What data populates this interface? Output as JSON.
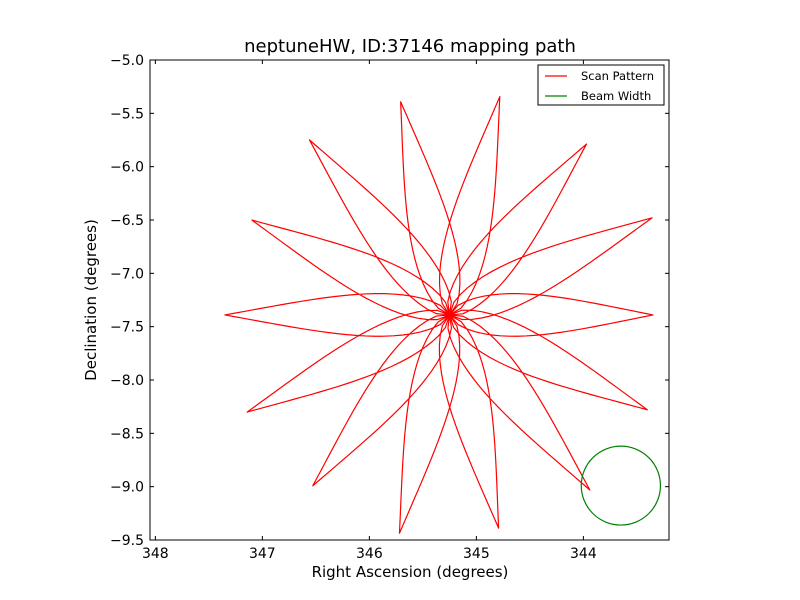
{
  "chart_data": {
    "type": "line",
    "title": "neptuneHW, ID:37146 mapping path",
    "xlabel": "Right Ascension (degrees)",
    "ylabel": "Declination (degrees)",
    "xlim": [
      348.05,
      343.2
    ],
    "ylim": [
      -9.5,
      -5.0
    ],
    "x_ticks": [
      348,
      347,
      346,
      345,
      344
    ],
    "x_tick_labels": [
      "348",
      "347",
      "346",
      "345",
      "344"
    ],
    "y_ticks": [
      -5.0,
      -5.5,
      -6.0,
      -6.5,
      -7.0,
      -7.5,
      -8.0,
      -8.5,
      -9.0,
      -9.5
    ],
    "y_tick_labels": [
      "−5.0",
      "−5.5",
      "−6.0",
      "−6.5",
      "−7.0",
      "−7.5",
      "−8.0",
      "−8.5",
      "−9.0",
      "−9.5"
    ],
    "grid": false,
    "legend_position": "top-right",
    "center": [
      345.25,
      -7.39
    ],
    "series": [
      {
        "name": "Scan Pattern",
        "color": "#ff0000",
        "lobe_count": 14,
        "lobe_angles_deg": [
          0,
          25.7,
          51.4,
          77.1,
          102.9,
          128.6,
          154.3,
          180,
          205.7,
          231.4,
          257.1,
          282.9,
          308.6,
          334.3
        ],
        "lobe_reach_deg": [
          2.1,
          2.05,
          2.1,
          2.05,
          2.1,
          2.05,
          2.1,
          1.9,
          2.05,
          2.1,
          2.05,
          2.1,
          2.05,
          2.1
        ],
        "lobe_half_width_deg": 0.2
      },
      {
        "name": "Beam Width",
        "color": "#008000",
        "circle_center": [
          343.65,
          -8.99
        ],
        "circle_radius_deg": 0.37
      }
    ]
  }
}
